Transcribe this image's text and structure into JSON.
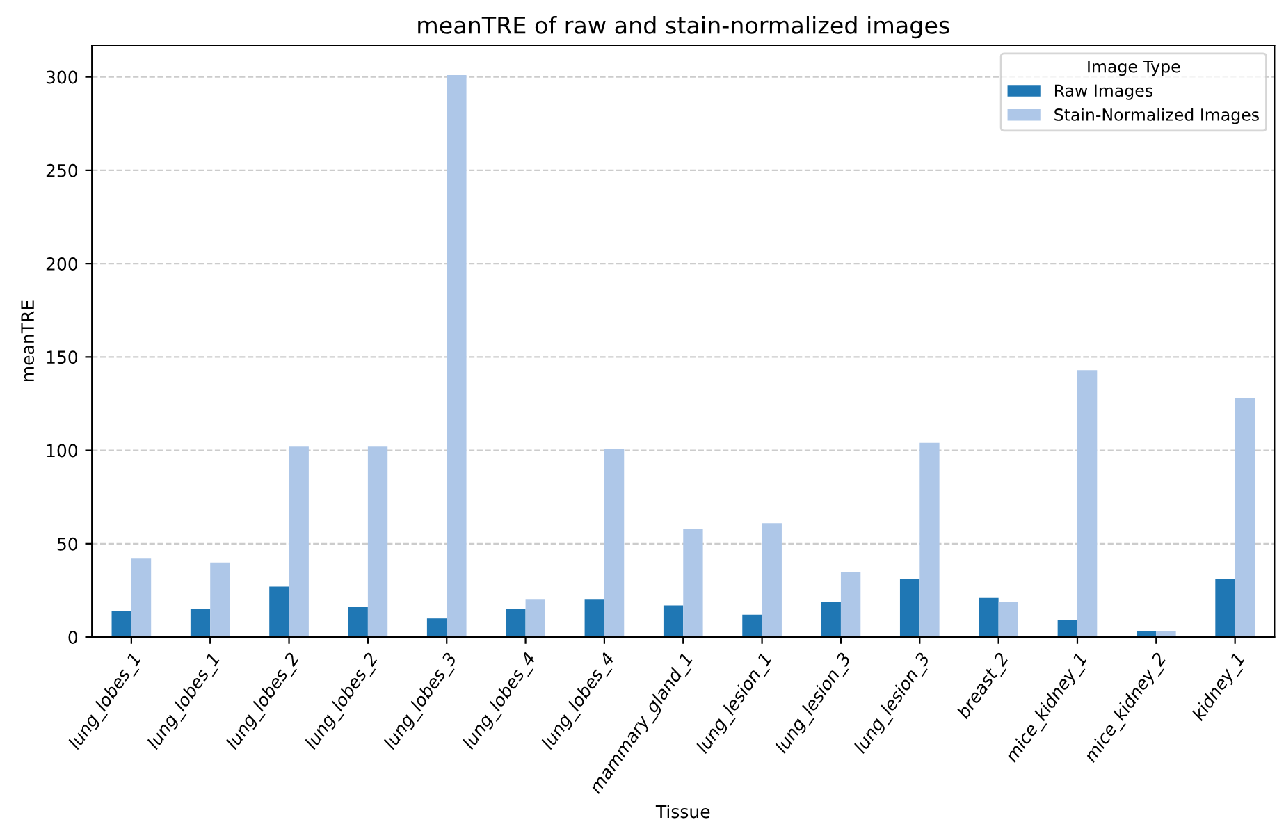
{
  "chart_data": {
    "type": "bar",
    "title": "meanTRE of raw and stain-normalized images",
    "xlabel": "Tissue",
    "ylabel": "meanTRE",
    "legend_title": "Image Type",
    "categories": [
      "lung_lobes_1",
      "lung_lobes_1",
      "lung_lobes_2",
      "lung_lobes_2",
      "lung_lobes_3",
      "lung_lobes_4",
      "lung_lobes_4",
      "mammary_gland_1",
      "lung_lesion_1",
      "lung_lesion_3",
      "lung_lesion_3",
      "breast_2",
      "mice_kidney_1",
      "mice_kidney_2",
      "kidney_1"
    ],
    "series": [
      {
        "name": "Raw Images",
        "color": "#1f77b4",
        "values": [
          14,
          15,
          27,
          16,
          10,
          15,
          20,
          17,
          12,
          19,
          31,
          21,
          9,
          3,
          31
        ]
      },
      {
        "name": "Stain-Normalized Images",
        "color": "#aec7e8",
        "values": [
          42,
          40,
          102,
          102,
          301,
          20,
          101,
          58,
          61,
          35,
          104,
          19,
          143,
          3,
          128
        ]
      }
    ],
    "ylim": [
      0,
      317
    ],
    "yticks": [
      0,
      50,
      100,
      150,
      200,
      250,
      300
    ],
    "grid": "y",
    "legend": "top right"
  }
}
